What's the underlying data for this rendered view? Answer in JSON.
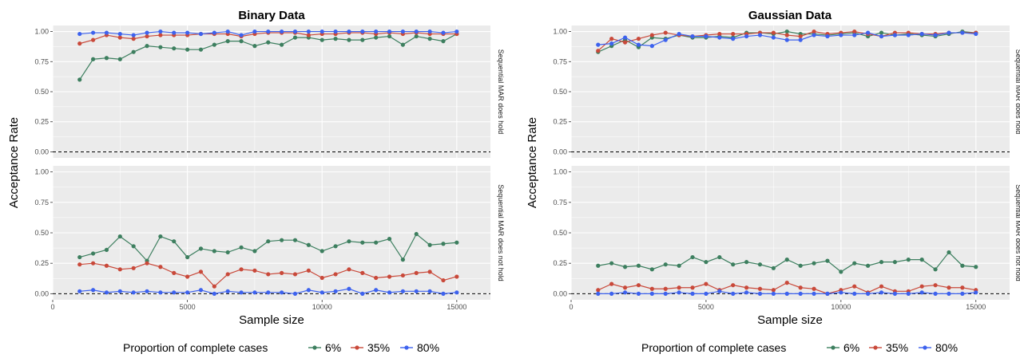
{
  "chart_data": {
    "type": "line",
    "xlabel": "Sample size",
    "ylabel": "Acceptance Rate",
    "xlim": [
      0,
      16250
    ],
    "ylim": [
      -0.05,
      1.05
    ],
    "x_ticks": [
      "0",
      "5000",
      "10000",
      "15000"
    ],
    "y_ticks": [
      "0.00",
      "0.25",
      "0.50",
      "0.75",
      "1.00"
    ],
    "reference_line": 0,
    "grid": true,
    "legend": {
      "title": "Proportion of complete cases",
      "placement": "bottom",
      "entries": [
        "6%",
        "35%",
        "80%"
      ],
      "colors": [
        "#3d7f5f",
        "#c9493a",
        "#3d62ee"
      ]
    },
    "strips": [
      "Sequential MAR does hold",
      "Sequential MAR does not hold"
    ],
    "x": [
      1000,
      1500,
      2000,
      2500,
      3000,
      3500,
      4000,
      4500,
      5000,
      5500,
      6000,
      6500,
      7000,
      7500,
      8000,
      8500,
      9000,
      9500,
      10000,
      10500,
      11000,
      11500,
      12000,
      12500,
      13000,
      13500,
      14000,
      14500,
      15000
    ],
    "panels": [
      {
        "title": "Binary Data",
        "facets": [
          {
            "series": [
              {
                "name": "6%",
                "values": [
                  0.6,
                  0.77,
                  0.78,
                  0.77,
                  0.83,
                  0.88,
                  0.87,
                  0.86,
                  0.85,
                  0.85,
                  0.89,
                  0.92,
                  0.92,
                  0.88,
                  0.91,
                  0.89,
                  0.95,
                  0.95,
                  0.93,
                  0.94,
                  0.93,
                  0.93,
                  0.95,
                  0.96,
                  0.89,
                  0.96,
                  0.94,
                  0.92,
                  0.98
                ]
              },
              {
                "name": "35%",
                "values": [
                  0.9,
                  0.93,
                  0.97,
                  0.95,
                  0.94,
                  0.96,
                  0.97,
                  0.97,
                  0.97,
                  0.98,
                  0.98,
                  0.98,
                  0.96,
                  0.98,
                  0.99,
                  0.99,
                  0.99,
                  0.97,
                  0.98,
                  0.98,
                  0.99,
                  0.99,
                  0.98,
                  0.99,
                  0.98,
                  0.99,
                  0.98,
                  0.98,
                  0.98
                ]
              },
              {
                "name": "80%",
                "values": [
                  0.98,
                  0.99,
                  0.99,
                  0.98,
                  0.97,
                  0.99,
                  1.0,
                  0.99,
                  0.99,
                  0.98,
                  0.99,
                  1.0,
                  0.97,
                  1.0,
                  1.0,
                  1.0,
                  1.0,
                  1.0,
                  1.0,
                  1.0,
                  1.0,
                  1.0,
                  1.0,
                  1.0,
                  1.0,
                  1.0,
                  1.0,
                  0.99,
                  1.0
                ]
              }
            ]
          },
          {
            "series": [
              {
                "name": "6%",
                "values": [
                  0.3,
                  0.33,
                  0.36,
                  0.47,
                  0.39,
                  0.27,
                  0.47,
                  0.43,
                  0.3,
                  0.37,
                  0.35,
                  0.34,
                  0.38,
                  0.35,
                  0.43,
                  0.44,
                  0.44,
                  0.4,
                  0.35,
                  0.39,
                  0.43,
                  0.42,
                  0.42,
                  0.45,
                  0.28,
                  0.49,
                  0.4,
                  0.41,
                  0.42
                ]
              },
              {
                "name": "35%",
                "values": [
                  0.24,
                  0.25,
                  0.23,
                  0.2,
                  0.21,
                  0.25,
                  0.22,
                  0.17,
                  0.14,
                  0.18,
                  0.06,
                  0.16,
                  0.2,
                  0.19,
                  0.16,
                  0.17,
                  0.16,
                  0.19,
                  0.13,
                  0.16,
                  0.2,
                  0.17,
                  0.13,
                  0.14,
                  0.15,
                  0.17,
                  0.18,
                  0.11,
                  0.14
                ]
              },
              {
                "name": "80%",
                "values": [
                  0.02,
                  0.03,
                  0.01,
                  0.02,
                  0.01,
                  0.02,
                  0.01,
                  0.01,
                  0.01,
                  0.03,
                  0.0,
                  0.02,
                  0.01,
                  0.01,
                  0.01,
                  0.01,
                  0.0,
                  0.03,
                  0.01,
                  0.02,
                  0.04,
                  0.0,
                  0.03,
                  0.01,
                  0.02,
                  0.02,
                  0.02,
                  0.0,
                  0.01
                ]
              }
            ]
          }
        ]
      },
      {
        "title": "Gaussian Data",
        "facets": [
          {
            "series": [
              {
                "name": "6%",
                "values": [
                  0.83,
                  0.88,
                  0.93,
                  0.87,
                  0.95,
                  0.94,
                  0.97,
                  0.95,
                  0.95,
                  0.96,
                  0.95,
                  0.99,
                  0.99,
                  0.98,
                  1.0,
                  0.98,
                  0.98,
                  0.97,
                  0.98,
                  0.99,
                  0.96,
                  0.99,
                  0.97,
                  0.98,
                  0.97,
                  0.96,
                  0.98,
                  1.0,
                  0.99
                ]
              },
              {
                "name": "35%",
                "values": [
                  0.84,
                  0.94,
                  0.91,
                  0.94,
                  0.97,
                  0.99,
                  0.97,
                  0.96,
                  0.97,
                  0.98,
                  0.98,
                  0.98,
                  0.99,
                  0.99,
                  0.97,
                  0.96,
                  1.0,
                  0.98,
                  0.99,
                  1.0,
                  0.98,
                  0.96,
                  0.99,
                  0.99,
                  0.98,
                  0.98,
                  0.99,
                  0.99,
                  0.99
                ]
              },
              {
                "name": "80%",
                "values": [
                  0.89,
                  0.9,
                  0.95,
                  0.89,
                  0.88,
                  0.93,
                  0.98,
                  0.96,
                  0.96,
                  0.95,
                  0.94,
                  0.96,
                  0.97,
                  0.95,
                  0.93,
                  0.93,
                  0.97,
                  0.96,
                  0.97,
                  0.97,
                  0.99,
                  0.96,
                  0.97,
                  0.97,
                  0.98,
                  0.97,
                  0.99,
                  0.99,
                  0.98
                ]
              }
            ]
          },
          {
            "series": [
              {
                "name": "6%",
                "values": [
                  0.23,
                  0.25,
                  0.22,
                  0.23,
                  0.2,
                  0.24,
                  0.23,
                  0.3,
                  0.26,
                  0.3,
                  0.24,
                  0.26,
                  0.24,
                  0.21,
                  0.28,
                  0.23,
                  0.25,
                  0.27,
                  0.18,
                  0.25,
                  0.23,
                  0.26,
                  0.26,
                  0.28,
                  0.28,
                  0.2,
                  0.34,
                  0.23,
                  0.22
                ]
              },
              {
                "name": "35%",
                "values": [
                  0.03,
                  0.08,
                  0.05,
                  0.07,
                  0.04,
                  0.04,
                  0.05,
                  0.05,
                  0.08,
                  0.03,
                  0.07,
                  0.05,
                  0.04,
                  0.03,
                  0.09,
                  0.05,
                  0.04,
                  0.0,
                  0.03,
                  0.06,
                  0.01,
                  0.06,
                  0.02,
                  0.02,
                  0.06,
                  0.07,
                  0.05,
                  0.05,
                  0.03
                ]
              },
              {
                "name": "80%",
                "values": [
                  0.0,
                  0.0,
                  0.01,
                  0.0,
                  0.0,
                  0.0,
                  0.01,
                  0.0,
                  0.0,
                  0.02,
                  0.0,
                  0.01,
                  0.0,
                  0.0,
                  0.0,
                  0.0,
                  0.0,
                  0.0,
                  0.01,
                  0.0,
                  0.0,
                  0.01,
                  0.0,
                  0.0,
                  0.01,
                  0.0,
                  0.0,
                  0.0,
                  0.01
                ]
              }
            ]
          }
        ]
      }
    ]
  }
}
